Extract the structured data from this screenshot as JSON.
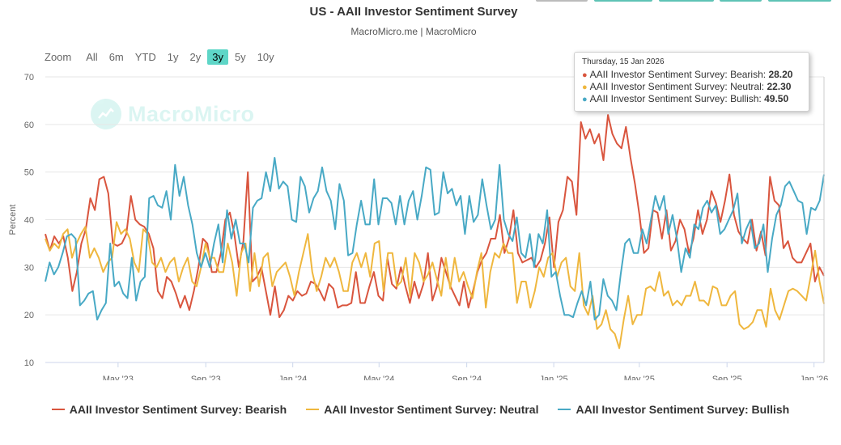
{
  "title": "US - AAII Investor Sentiment Survey",
  "subtitle": "MacroMicro.me | MacroMicro",
  "watermark": "MacroMicro",
  "range_selector": {
    "label": "Zoom",
    "buttons": [
      "All",
      "6m",
      "YTD",
      "1y",
      "2y",
      "3y",
      "5y",
      "10y"
    ],
    "active": "3y"
  },
  "colors": {
    "bearish": "#d9553e",
    "neutral": "#efb73e",
    "bullish": "#48a9c5",
    "active_button": "#5ed6c7"
  },
  "tooltip": {
    "date": "Thursday, 15 Jan 2026",
    "rows": [
      {
        "label": "AAII Investor Sentiment Survey: Bearish:",
        "value": "28.20",
        "color": "#d9553e"
      },
      {
        "label": "AAII Investor Sentiment Survey: Neutral:",
        "value": "22.30",
        "color": "#efb73e"
      },
      {
        "label": "AAII Investor Sentiment Survey: Bullish:",
        "value": "49.50",
        "color": "#48a9c5"
      }
    ]
  },
  "chart_data": {
    "type": "line",
    "title": "US - AAII Investor Sentiment Survey",
    "xlabel": "",
    "ylabel": "Percent",
    "ylim": [
      10,
      70
    ],
    "yticks": [
      10,
      20,
      30,
      40,
      50,
      60,
      70
    ],
    "x_start": "2023-01-19",
    "x_end": "2026-01-15",
    "x_step": "weekly",
    "xticks": [
      {
        "label": "May '23",
        "date": "2023-05-01"
      },
      {
        "label": "Sep '23",
        "date": "2023-09-01"
      },
      {
        "label": "Jan '24",
        "date": "2024-01-01"
      },
      {
        "label": "May '24",
        "date": "2024-05-01"
      },
      {
        "label": "Sep '24",
        "date": "2024-09-01"
      },
      {
        "label": "Jan '25",
        "date": "2025-01-01"
      },
      {
        "label": "May '25",
        "date": "2025-05-01"
      },
      {
        "label": "Sep '25",
        "date": "2025-09-01"
      },
      {
        "label": "Jan '26",
        "date": "2026-01-01"
      }
    ],
    "grid": true,
    "legend": "bottom",
    "series": [
      {
        "name": "AAII Investor Sentiment Survey: Bearish",
        "key": "bearish",
        "values": [
          37,
          33.5,
          36.5,
          35,
          36.5,
          32,
          25,
          29,
          35,
          38,
          44.5,
          42,
          48.5,
          49,
          45.5,
          35,
          34.5,
          35,
          37,
          45,
          40,
          39,
          38.5,
          37,
          34,
          25,
          23.5,
          28,
          27,
          24.5,
          21.5,
          24,
          21,
          25,
          30,
          36,
          35,
          29,
          29,
          33,
          40,
          41.5,
          37,
          30,
          35.5,
          50,
          27,
          28,
          30,
          25,
          20,
          26,
          19.5,
          21,
          24,
          23,
          25,
          24,
          24.5,
          27,
          26.5,
          25,
          23,
          26.5,
          25.5,
          21.5,
          22,
          22,
          22.5,
          29,
          22.5,
          22.5,
          26,
          29,
          24,
          23,
          32,
          26.5,
          25.5,
          30,
          26,
          22.5,
          27,
          23.5,
          26.5,
          33,
          23,
          26,
          32,
          29,
          26,
          24,
          22,
          27,
          21.5,
          25,
          29,
          31.5,
          33,
          36,
          36,
          41,
          33,
          36,
          42,
          33,
          31,
          31.5,
          32,
          30,
          31.5,
          35,
          40.5,
          30,
          39.5,
          42,
          49,
          48,
          41,
          60.5,
          57,
          59,
          56,
          58,
          52.5,
          62,
          58,
          56,
          55,
          59.5,
          53,
          47.5,
          41,
          33,
          34,
          42,
          41.5,
          36,
          42,
          33.5,
          35.5,
          40,
          38,
          33,
          36,
          42,
          37,
          40,
          46,
          43.5,
          39.5,
          44,
          49.5,
          41,
          37.5,
          36,
          35,
          40,
          33.5,
          37.5,
          32.5,
          49,
          44,
          43,
          34,
          35.5,
          32,
          31,
          31,
          33,
          35,
          27,
          30,
          28.2
        ]
      },
      {
        "name": "AAII Investor Sentiment Survey: Neutral",
        "key": "neutral",
        "values": [
          36,
          33.5,
          35,
          34,
          37,
          38,
          32,
          35,
          37,
          38.5,
          32,
          34,
          32,
          29,
          31,
          32,
          39.5,
          37,
          38,
          36,
          31,
          29,
          38,
          37,
          31,
          30,
          32,
          29,
          31,
          32,
          27,
          30,
          32,
          27,
          26,
          30,
          35,
          32,
          32,
          29,
          29,
          35,
          31,
          24,
          33,
          35,
          25,
          33,
          26,
          32,
          33,
          26,
          29,
          30,
          31,
          28,
          24,
          29,
          33,
          37,
          29,
          25,
          28,
          32,
          30,
          32,
          29,
          25,
          25,
          31,
          33,
          30,
          33,
          28,
          35,
          35.5,
          25,
          33,
          33,
          26,
          27,
          32,
          24,
          33,
          31,
          27,
          28.5,
          31,
          27.5,
          24,
          32,
          25.5,
          32,
          27,
          29,
          26,
          23.5,
          29,
          33,
          21.5,
          29,
          33,
          32,
          35,
          33,
          33,
          22.5,
          27,
          27,
          21.5,
          25,
          30,
          28,
          32,
          33,
          28,
          31,
          32,
          26,
          25,
          33,
          22,
          20,
          24,
          17,
          18,
          21,
          17,
          16,
          13,
          19,
          24,
          18,
          20,
          20,
          25.5,
          26,
          25,
          29,
          24,
          25,
          22,
          23,
          22,
          24,
          24,
          27,
          23,
          23,
          22,
          26,
          25.5,
          22,
          22,
          24,
          25,
          18,
          17,
          17.5,
          18.5,
          21,
          21,
          17.5,
          25.5,
          21,
          19,
          22,
          25,
          25.5,
          25,
          24,
          23,
          28,
          33.5,
          27,
          22.3
        ]
      },
      {
        "name": "AAII Investor Sentiment Survey: Bullish",
        "key": "bullish",
        "values": [
          27,
          31,
          28.5,
          30,
          33,
          36.5,
          37,
          36,
          22,
          23,
          24.5,
          25,
          19,
          21,
          22.5,
          35,
          26,
          27,
          24.5,
          23.5,
          32,
          23,
          27,
          28,
          44.5,
          45,
          43,
          42.5,
          46,
          40,
          51.5,
          45,
          49,
          43,
          39,
          33,
          30,
          33,
          30,
          35,
          39,
          31,
          42,
          36,
          40,
          35,
          35,
          31,
          42.5,
          44,
          44.5,
          50,
          46,
          53,
          46.5,
          48,
          47,
          40,
          39.5,
          49,
          47,
          41.5,
          44.5,
          46,
          51,
          46,
          44,
          38,
          47.5,
          44,
          32.5,
          33,
          39,
          44,
          39,
          39,
          48.5,
          39,
          44.5,
          44.5,
          43.5,
          39,
          45,
          39,
          44,
          46,
          40,
          45,
          51,
          50.5,
          41,
          41.5,
          50,
          45.5,
          46.5,
          43,
          45,
          37,
          45,
          39.5,
          41,
          48.5,
          43,
          38,
          40,
          51.5,
          40,
          37,
          35.5,
          40.5,
          33,
          32,
          37,
          30,
          37,
          35,
          42,
          28,
          29,
          24,
          20,
          20,
          19.5,
          22.5,
          25,
          22,
          27,
          19,
          20,
          27.5,
          24,
          23,
          21,
          28.5,
          35,
          36,
          33,
          33,
          38,
          35,
          40,
          45,
          42,
          45,
          37,
          41,
          36,
          29,
          34,
          32,
          39,
          38,
          42.5,
          44,
          41.5,
          43,
          37,
          38,
          40,
          42,
          45.5,
          35,
          38,
          40,
          34,
          35,
          39,
          29,
          36,
          41,
          43,
          47,
          48,
          46,
          44,
          43.5,
          37,
          42.5,
          42,
          44,
          49.5
        ]
      }
    ]
  },
  "legend_items": [
    {
      "label": "AAII Investor Sentiment Survey: Bearish",
      "color": "#d9553e"
    },
    {
      "label": "AAII Investor Sentiment Survey: Neutral",
      "color": "#efb73e"
    },
    {
      "label": "AAII Investor Sentiment Survey: Bullish",
      "color": "#48a9c5"
    }
  ]
}
